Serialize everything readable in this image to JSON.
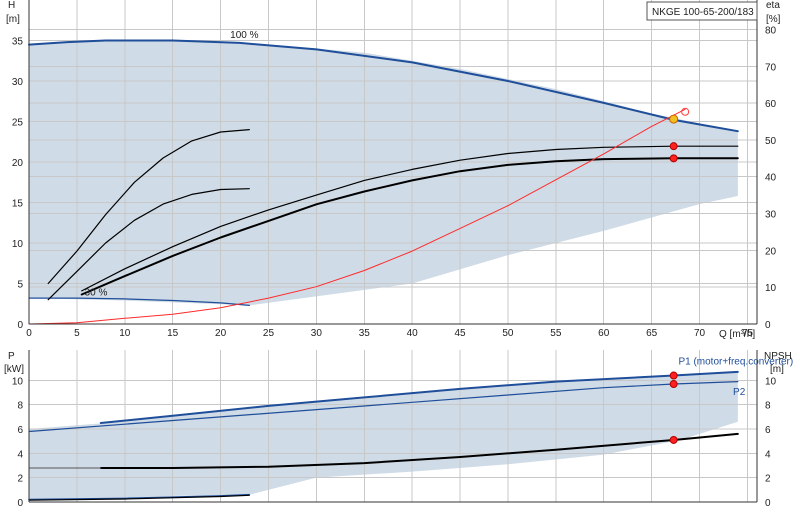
{
  "chart_data": [
    {
      "type": "line",
      "panel": "pump-head-efficiency",
      "title": "NKGE 100-65-200/183",
      "left_axis": {
        "label_top": "H",
        "label_unit": "[m]",
        "ylim": [
          0,
          40
        ],
        "ticks": [
          0,
          5,
          10,
          15,
          20,
          25,
          30,
          35
        ]
      },
      "right_axis": {
        "label_top": "eta",
        "label_unit": "[%]",
        "ylim": [
          0,
          88
        ],
        "ticks": [
          0,
          10,
          20,
          30,
          40,
          50,
          60,
          70,
          80
        ]
      },
      "x_axis": {
        "label": "Q [m³/h]",
        "xlim": [
          0,
          76
        ],
        "ticks": [
          0,
          5,
          10,
          15,
          20,
          25,
          30,
          35,
          40,
          45,
          50,
          55,
          60,
          65,
          70,
          75
        ]
      },
      "grid": true,
      "annotations": [
        {
          "text": "100 %",
          "x": 21,
          "y": 35.3
        },
        {
          "text": "30 %",
          "x": 5.8,
          "y": 3.5
        }
      ],
      "envelope_region": {
        "color": "#cfdbe6",
        "upper": [
          [
            0,
            34.5
          ],
          [
            8,
            35
          ],
          [
            15,
            35
          ],
          [
            25,
            34.5
          ],
          [
            35,
            33.5
          ],
          [
            45,
            31.5
          ],
          [
            55,
            29
          ],
          [
            65,
            26
          ],
          [
            74,
            23.8
          ]
        ],
        "lower": [
          [
            74,
            15.8
          ],
          [
            70,
            14.8
          ],
          [
            60,
            11.5
          ],
          [
            50,
            8.5
          ],
          [
            40,
            5
          ],
          [
            23,
            2.3
          ],
          [
            10,
            2.9
          ],
          [
            0,
            3.2
          ]
        ]
      },
      "series": [
        {
          "role": "head-max",
          "color": "#1f4e9a",
          "width": 2,
          "axis": "left",
          "points": [
            [
              0,
              34.5
            ],
            [
              4,
              34.8
            ],
            [
              8,
              35.0
            ],
            [
              15,
              35.0
            ],
            [
              22,
              34.7
            ],
            [
              30,
              33.9
            ],
            [
              40,
              32.3
            ],
            [
              50,
              30.0
            ],
            [
              60,
              27.3
            ],
            [
              67.3,
              25.2
            ],
            [
              74,
              23.8
            ]
          ]
        },
        {
          "role": "head-min",
          "color": "#1f4e9a",
          "width": 1.3,
          "axis": "left",
          "points": [
            [
              0,
              3.2
            ],
            [
              5,
              3.2
            ],
            [
              10,
              3.1
            ],
            [
              15,
              2.9
            ],
            [
              20,
              2.6
            ],
            [
              23,
              2.3
            ]
          ]
        },
        {
          "role": "head-operating",
          "color": "#000000",
          "width": 1.2,
          "axis": "left",
          "points": [
            [
              2,
              5
            ],
            [
              5,
              9
            ],
            [
              8,
              13.5
            ],
            [
              11,
              17.5
            ],
            [
              14,
              20.5
            ],
            [
              17,
              22.6
            ],
            [
              20,
              23.7
            ],
            [
              23,
              24.0
            ]
          ]
        },
        {
          "role": "head-operating-2",
          "color": "#000000",
          "width": 1.2,
          "axis": "left",
          "points": [
            [
              2,
              3
            ],
            [
              5,
              6.5
            ],
            [
              8,
              10
            ],
            [
              11,
              12.8
            ],
            [
              14,
              14.8
            ],
            [
              17,
              16.0
            ],
            [
              20,
              16.6
            ],
            [
              23,
              16.7
            ]
          ]
        },
        {
          "role": "eta-upper",
          "color": "#000000",
          "width": 1.2,
          "axis": "right",
          "points": [
            [
              5.5,
              9
            ],
            [
              10,
              15
            ],
            [
              15,
              21
            ],
            [
              20,
              26.5
            ],
            [
              25,
              31
            ],
            [
              30,
              35
            ],
            [
              35,
              39
            ],
            [
              40,
              42
            ],
            [
              45,
              44.5
            ],
            [
              50,
              46.3
            ],
            [
              55,
              47.4
            ],
            [
              60,
              48
            ],
            [
              67.3,
              48.3
            ],
            [
              74,
              48.3
            ]
          ]
        },
        {
          "role": "eta-main",
          "color": "#000000",
          "width": 2,
          "axis": "right",
          "points": [
            [
              5.5,
              8
            ],
            [
              10,
              13
            ],
            [
              15,
              18.5
            ],
            [
              20,
              23.5
            ],
            [
              25,
              28
            ],
            [
              30,
              32.5
            ],
            [
              35,
              36
            ],
            [
              40,
              39
            ],
            [
              45,
              41.5
            ],
            [
              50,
              43.2
            ],
            [
              55,
              44.2
            ],
            [
              60,
              44.8
            ],
            [
              67.3,
              45
            ],
            [
              74,
              45
            ]
          ]
        },
        {
          "role": "system-curve",
          "color": "#ff2a2a",
          "width": 1,
          "axis": "left",
          "points": [
            [
              0,
              0
            ],
            [
              5,
              0.15
            ],
            [
              10,
              0.7
            ],
            [
              15,
              1.2
            ],
            [
              20,
              2.0
            ],
            [
              25,
              3.2
            ],
            [
              30,
              4.6
            ],
            [
              35,
              6.6
            ],
            [
              40,
              9.0
            ],
            [
              45,
              11.8
            ],
            [
              50,
              14.6
            ],
            [
              55,
              17.8
            ],
            [
              60,
              21.0
            ],
            [
              65,
              24.4
            ],
            [
              68.5,
              26.5
            ]
          ]
        }
      ],
      "markers": [
        {
          "x": 67.3,
          "y": 25.3,
          "axis": "left",
          "fill": "#f0c020",
          "stroke": "#d06000",
          "r": 4
        },
        {
          "x": 67.3,
          "y": 48.3,
          "axis": "right",
          "fill": "#ff2020",
          "stroke": "#b00000",
          "r": 3.5
        },
        {
          "x": 67.3,
          "y": 45.0,
          "axis": "right",
          "fill": "#ff2020",
          "stroke": "#b00000",
          "r": 3.5
        },
        {
          "x": 68.5,
          "y": 26.2,
          "axis": "left",
          "fill": "none",
          "stroke": "#ff4040",
          "r": 3.5
        }
      ]
    },
    {
      "type": "line",
      "panel": "power-npsh",
      "left_axis": {
        "label_top": "P",
        "label_unit": "[kW]",
        "ylim": [
          0,
          12.5
        ],
        "ticks": [
          0,
          2,
          4,
          6,
          8,
          10
        ]
      },
      "right_axis": {
        "label_top": "NPSH",
        "label_unit": "[m]",
        "ylim": [
          0,
          12.5
        ],
        "ticks": [
          0,
          2,
          4,
          6,
          8,
          10
        ]
      },
      "x_axis": {
        "xlim": [
          0,
          76
        ]
      },
      "grid": true,
      "annotations": [
        {
          "text": "P1 (motor+freq.converter)",
          "x": 67.8,
          "y": 11.3,
          "color": "#1f4e9a"
        },
        {
          "text": "P2",
          "x": 73.5,
          "y": 8.8,
          "color": "#1f4e9a"
        }
      ],
      "envelope_region": {
        "color": "#cfdbe6",
        "upper": [
          [
            0,
            6.0
          ],
          [
            8,
            6.5
          ],
          [
            20,
            7.5
          ],
          [
            30,
            8.3
          ],
          [
            40,
            9.0
          ],
          [
            50,
            9.6
          ],
          [
            60,
            10.1
          ],
          [
            67.3,
            10.4
          ],
          [
            74,
            10.7
          ]
        ],
        "lower": [
          [
            74,
            6.6
          ],
          [
            68,
            5.1
          ],
          [
            60,
            3.9
          ],
          [
            50,
            3.1
          ],
          [
            40,
            2.5
          ],
          [
            30,
            2.0
          ],
          [
            23,
            0.6
          ],
          [
            15,
            0.5
          ],
          [
            8,
            0.3
          ],
          [
            5,
            0.2
          ],
          [
            0,
            0.2
          ]
        ]
      },
      "series": [
        {
          "role": "P1",
          "color": "#1f4e9a",
          "width": 2,
          "axis": "left",
          "points": [
            [
              7.5,
              6.5
            ],
            [
              15,
              7.1
            ],
            [
              25,
              7.9
            ],
            [
              35,
              8.6
            ],
            [
              45,
              9.3
            ],
            [
              55,
              9.9
            ],
            [
              67.3,
              10.4
            ],
            [
              74,
              10.7
            ]
          ]
        },
        {
          "role": "P2",
          "color": "#1f4e9a",
          "width": 1.2,
          "axis": "left",
          "points": [
            [
              0,
              5.8
            ],
            [
              10,
              6.4
            ],
            [
              20,
              7.0
            ],
            [
              30,
              7.6
            ],
            [
              40,
              8.2
            ],
            [
              50,
              8.8
            ],
            [
              60,
              9.4
            ],
            [
              67.3,
              9.7
            ],
            [
              74,
              9.9
            ]
          ]
        },
        {
          "role": "NPSH",
          "color": "#000000",
          "width": 2,
          "axis": "right",
          "points": [
            [
              7.5,
              2.8
            ],
            [
              15,
              2.8
            ],
            [
              25,
              2.9
            ],
            [
              35,
              3.2
            ],
            [
              45,
              3.7
            ],
            [
              55,
              4.3
            ],
            [
              67.3,
              5.1
            ],
            [
              74,
              5.6
            ]
          ]
        },
        {
          "role": "NPSH-ext",
          "color": "#555555",
          "width": 1,
          "axis": "right",
          "points": [
            [
              0,
              2.8
            ],
            [
              7.5,
              2.8
            ]
          ]
        },
        {
          "role": "power-min",
          "color": "#1f4e9a",
          "width": 1.6,
          "axis": "left",
          "points": [
            [
              0,
              0.2
            ],
            [
              10,
              0.3
            ],
            [
              20,
              0.5
            ],
            [
              23,
              0.6
            ]
          ]
        },
        {
          "role": "power-min-2",
          "color": "#000000",
          "width": 1.2,
          "axis": "left",
          "points": [
            [
              0,
              0.15
            ],
            [
              10,
              0.25
            ],
            [
              20,
              0.45
            ],
            [
              23,
              0.55
            ]
          ]
        }
      ],
      "markers": [
        {
          "x": 67.3,
          "y": 10.4,
          "axis": "left",
          "fill": "#ff2020",
          "stroke": "#b00000",
          "r": 3.5
        },
        {
          "x": 67.3,
          "y": 9.7,
          "axis": "left",
          "fill": "#ff2020",
          "stroke": "#b00000",
          "r": 3.5
        },
        {
          "x": 67.3,
          "y": 5.1,
          "axis": "right",
          "fill": "#ff2020",
          "stroke": "#b00000",
          "r": 3.5
        }
      ]
    }
  ]
}
